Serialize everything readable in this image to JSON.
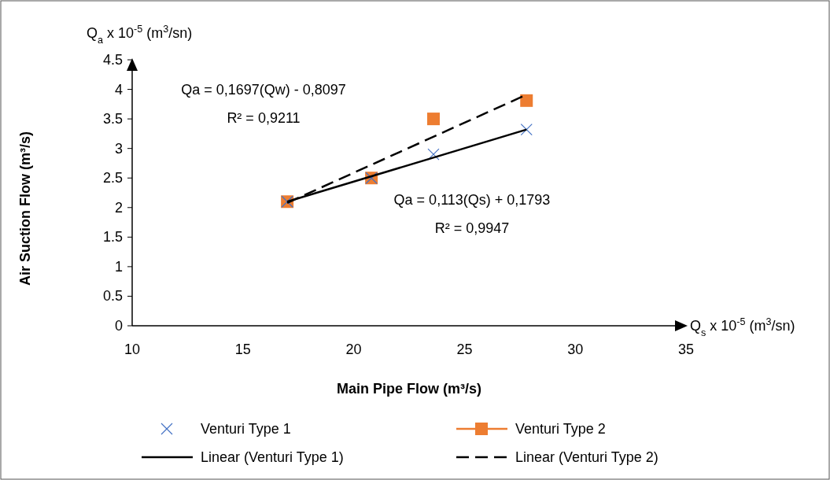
{
  "chart_data": {
    "type": "scatter",
    "xlabel": "Main Pipe Flow (m³/s)",
    "ylabel": "Air Suction Flow (m³/s)",
    "xlim": [
      10,
      35
    ],
    "xticks": [
      10,
      15,
      20,
      25,
      30,
      35
    ],
    "ylim": [
      0,
      4.5
    ],
    "yticks": [
      0,
      0.5,
      1,
      1.5,
      2,
      2.5,
      3,
      3.5,
      4,
      4.5
    ],
    "grid": false,
    "legend": "bottom",
    "annotations": [
      "Q$_{a}$ x 10$^{-5}$ (m$^{3}$/sn)",
      "Q$_{s}$ x 10$^{-5}$ (m$^{3}$/sn)",
      "Qa = 0,1697(Qw) - 0,8097",
      "R² = 0,9211",
      "Qa = 0,113(Qs) + 0,1793",
      "R² = 0,9947"
    ],
    "series": [
      {
        "name": "Venturi Type 1",
        "type": "scatter",
        "color": "#4472c4",
        "marker": "cross",
        "x": [
          17.0,
          20.8,
          23.6,
          27.8
        ],
        "values": [
          2.1,
          2.5,
          2.9,
          3.32
        ]
      },
      {
        "name": "Venturi Type 2",
        "type": "scatter",
        "color": "#ed7d31",
        "marker": "square",
        "x": [
          17.0,
          20.8,
          23.6,
          27.8
        ],
        "values": [
          2.1,
          2.5,
          3.5,
          3.81
        ]
      },
      {
        "name": "Linear (Venturi Type 1)",
        "type": "line",
        "color": "#000000",
        "marker": "none",
        "line_style": "solid",
        "x": [
          17.0,
          27.8
        ],
        "values": [
          2.1,
          3.32
        ]
      },
      {
        "name": "Linear (Venturi Type 2)",
        "type": "line",
        "color": "#000000",
        "marker": "none",
        "line_style": "dashed",
        "x": [
          17.0,
          27.8
        ],
        "values": [
          2.08,
          3.91
        ]
      }
    ]
  }
}
